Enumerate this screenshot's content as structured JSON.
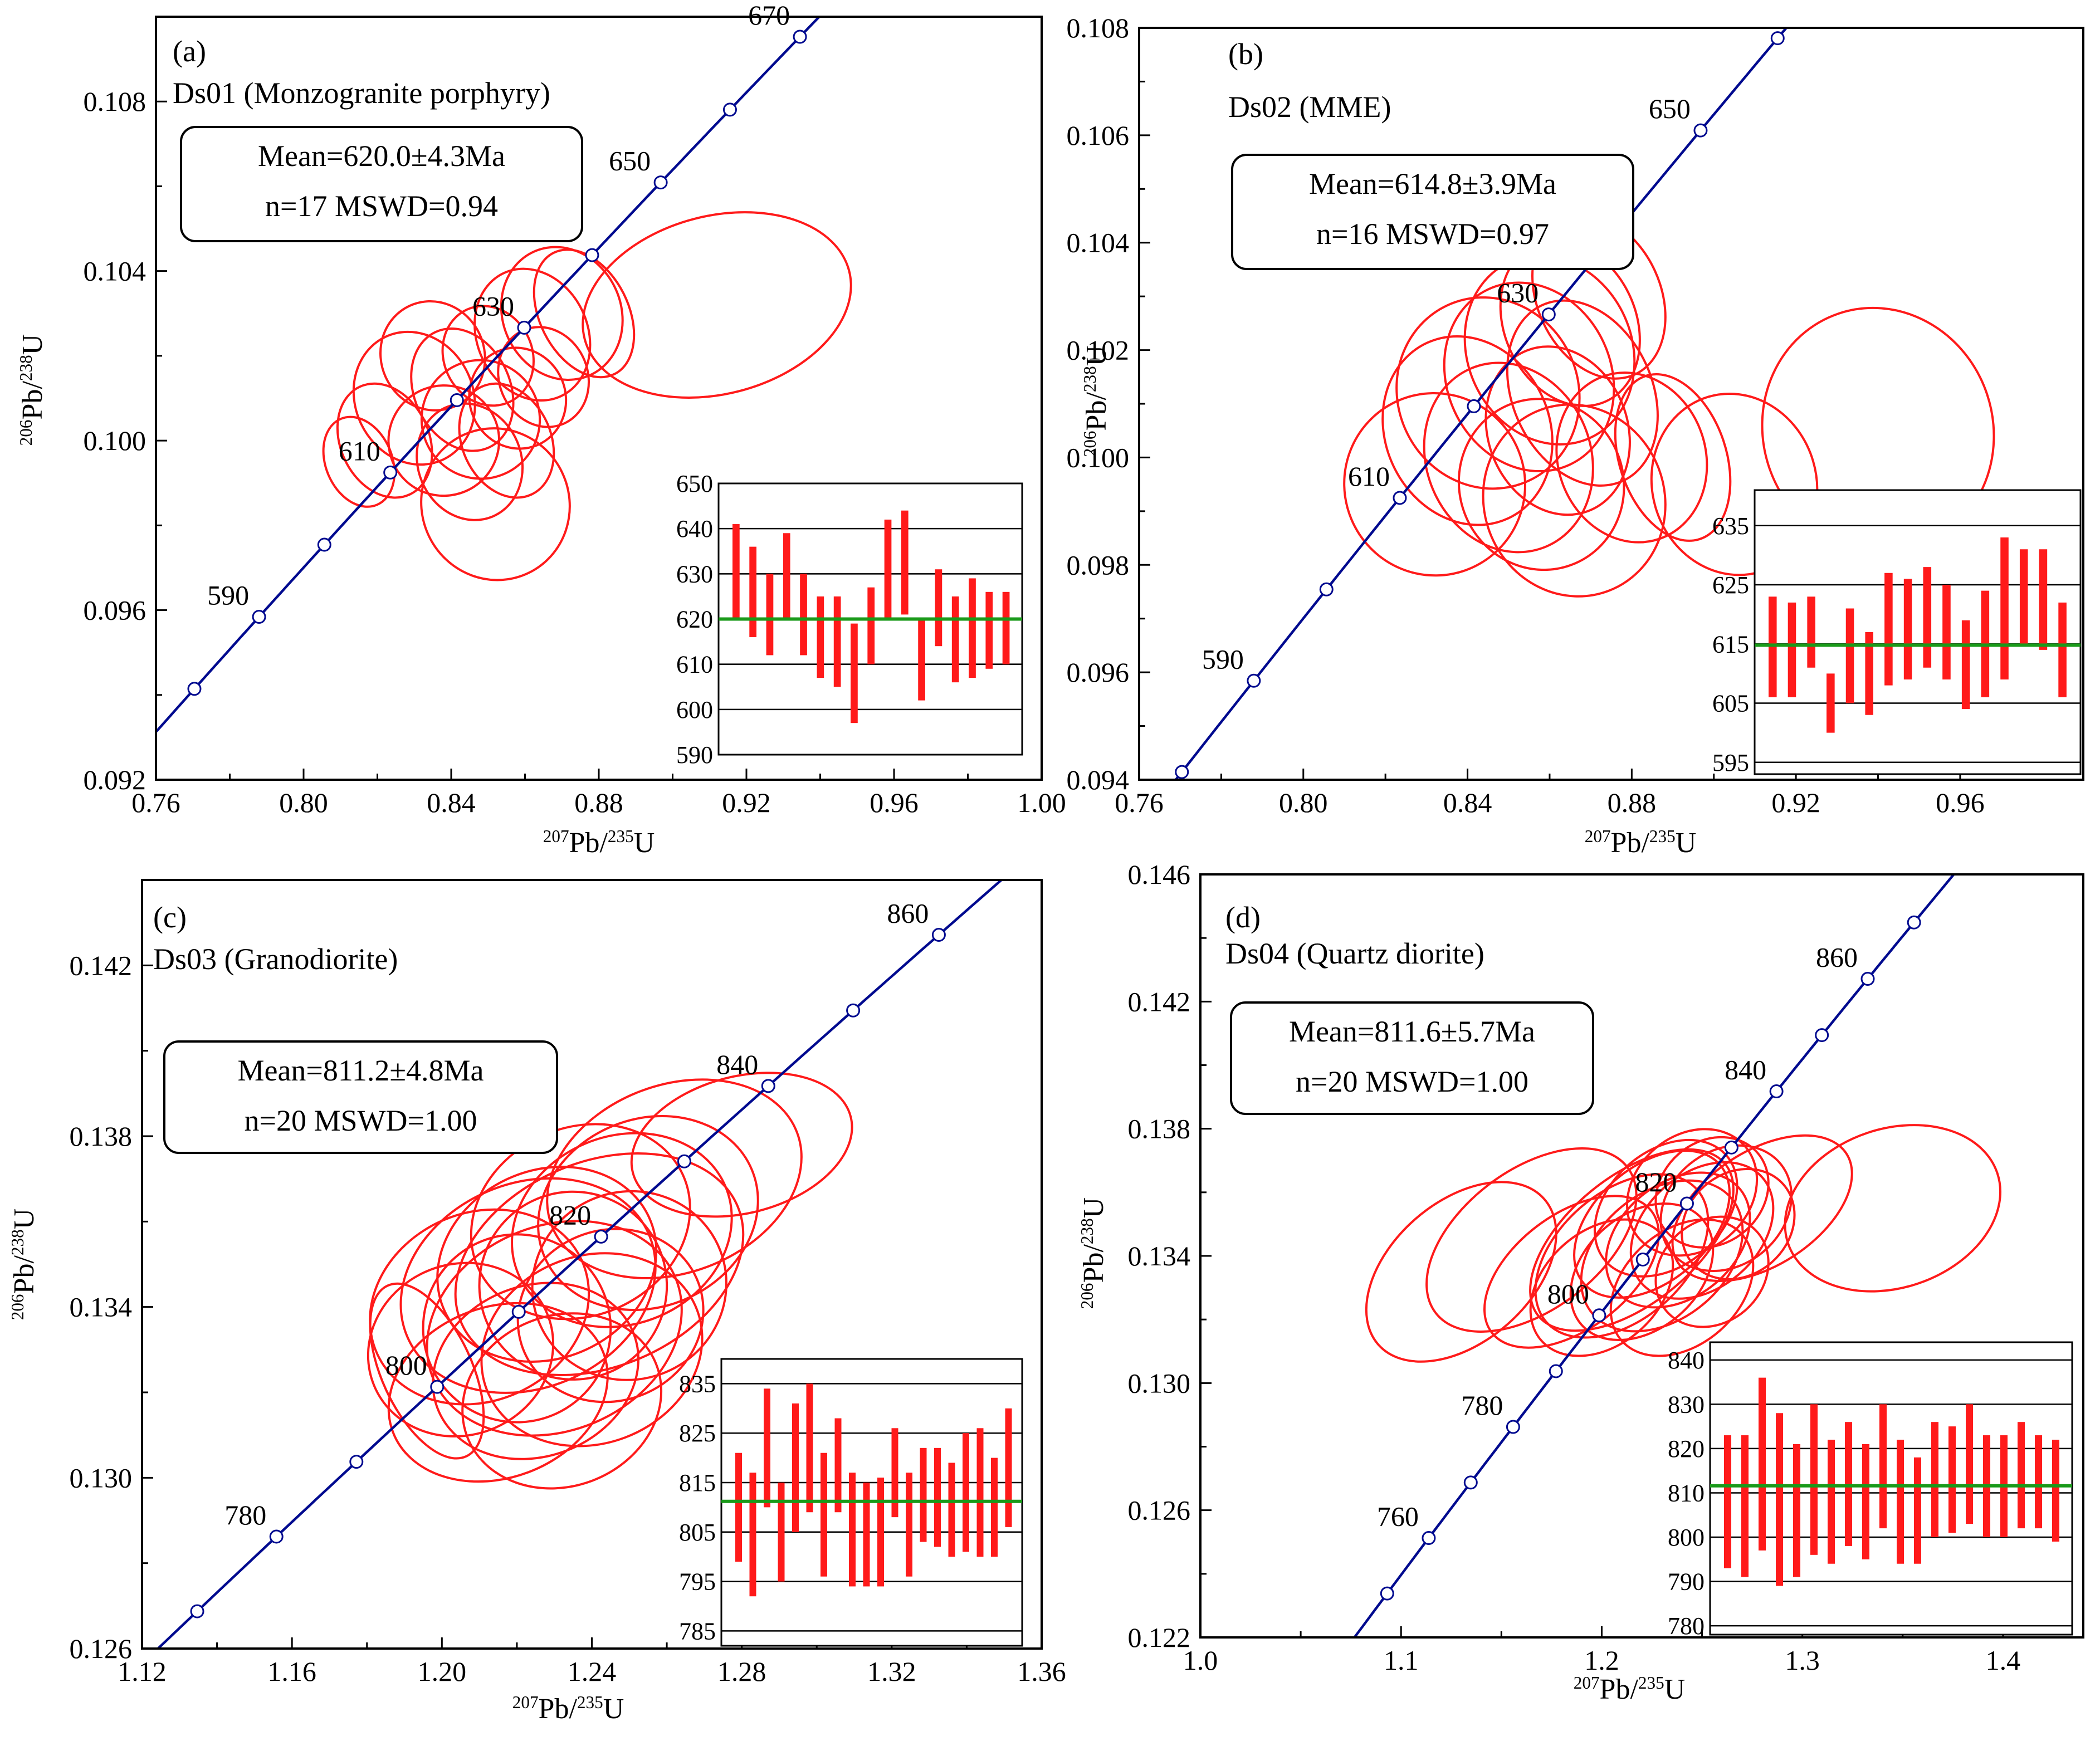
{
  "chart_data": [
    {
      "panel_label": "(a)",
      "sample_label": "Ds01 (Monzogranite porphyry)",
      "type": "concordia",
      "xlabel": "207Pb/235U",
      "ylabel": "206Pb/238U",
      "xlim": [
        0.76,
        1.0
      ],
      "ylim": [
        0.092,
        0.11
      ],
      "x_ticks": [
        0.76,
        0.8,
        0.84,
        0.88,
        0.92,
        0.96,
        1.0
      ],
      "x_tick_labels": [
        "0.76",
        "0.80",
        "0.84",
        "0.88",
        "0.92",
        "0.96",
        "1.00"
      ],
      "y_ticks": [
        0.092,
        0.096,
        0.1,
        0.104,
        0.108
      ],
      "y_tick_labels": [
        "0.092",
        "0.096",
        "0.100",
        "0.104",
        "0.108"
      ],
      "concordia_ages": [
        590,
        610,
        630,
        650,
        670
      ],
      "concordia_markers_step": 10,
      "concordia_range": [
        570,
        680
      ],
      "box": {
        "line1": "Mean=620.0±4.3Ma",
        "line2": "n=17   MSWD=0.94"
      },
      "ellipses": [
        {
          "x": 0.815,
          "y": 0.0995,
          "rx": 0.009,
          "ry": 0.0011,
          "r": -0.55
        },
        {
          "x": 0.822,
          "y": 0.1,
          "rx": 0.012,
          "ry": 0.0014,
          "r": -0.6
        },
        {
          "x": 0.83,
          "y": 0.101,
          "rx": 0.016,
          "ry": 0.0016,
          "r": -0.6
        },
        {
          "x": 0.835,
          "y": 0.102,
          "rx": 0.014,
          "ry": 0.0013,
          "r": -0.6
        },
        {
          "x": 0.838,
          "y": 0.1,
          "rx": 0.015,
          "ry": 0.0013,
          "r": -0.55
        },
        {
          "x": 0.843,
          "y": 0.1012,
          "rx": 0.013,
          "ry": 0.0015,
          "r": -0.6
        },
        {
          "x": 0.845,
          "y": 0.0995,
          "rx": 0.014,
          "ry": 0.0014,
          "r": -0.55
        },
        {
          "x": 0.848,
          "y": 0.1005,
          "rx": 0.016,
          "ry": 0.0014,
          "r": -0.6
        },
        {
          "x": 0.85,
          "y": 0.102,
          "rx": 0.012,
          "ry": 0.0012,
          "r": -0.6
        },
        {
          "x": 0.855,
          "y": 0.1,
          "rx": 0.012,
          "ry": 0.0014,
          "r": -0.6
        },
        {
          "x": 0.858,
          "y": 0.101,
          "rx": 0.013,
          "ry": 0.0012,
          "r": -0.55
        },
        {
          "x": 0.852,
          "y": 0.0985,
          "rx": 0.02,
          "ry": 0.0018,
          "r": -0.62
        },
        {
          "x": 0.862,
          "y": 0.1025,
          "rx": 0.015,
          "ry": 0.0016,
          "r": -0.6
        },
        {
          "x": 0.87,
          "y": 0.103,
          "rx": 0.016,
          "ry": 0.0016,
          "r": -0.6
        },
        {
          "x": 0.865,
          "y": 0.1015,
          "rx": 0.012,
          "ry": 0.0012,
          "r": -0.55
        },
        {
          "x": 0.876,
          "y": 0.103,
          "rx": 0.012,
          "ry": 0.0016,
          "r": -0.65
        },
        {
          "x": 0.912,
          "y": 0.1032,
          "rx": 0.037,
          "ry": 0.0021,
          "r": -0.35
        }
      ],
      "inset": {
        "ylim": [
          590,
          650
        ],
        "y_ticks": [
          590,
          600,
          610,
          620,
          630,
          640,
          650
        ],
        "y_tick_labels": [
          "590",
          "600",
          "610",
          "620",
          "630",
          "640",
          "650"
        ],
        "mean": 620.0,
        "bars": [
          [
            620,
            641
          ],
          [
            616,
            636
          ],
          [
            612,
            630
          ],
          [
            620,
            639
          ],
          [
            612,
            630
          ],
          [
            607,
            625
          ],
          [
            605,
            625
          ],
          [
            597,
            619
          ],
          [
            610,
            627
          ],
          [
            620,
            642
          ],
          [
            621,
            644
          ],
          [
            602,
            620
          ],
          [
            614,
            631
          ],
          [
            606,
            625
          ],
          [
            607,
            629
          ],
          [
            609,
            626
          ],
          [
            610,
            626
          ]
        ]
      }
    },
    {
      "panel_label": "(b)",
      "sample_label": "Ds02 (MME)",
      "type": "concordia",
      "xlabel": "207Pb/235U",
      "ylabel": "206Pb/238U",
      "xlim": [
        0.76,
        0.99
      ],
      "ylim": [
        0.094,
        0.108
      ],
      "x_ticks": [
        0.76,
        0.8,
        0.84,
        0.88,
        0.92,
        0.96
      ],
      "x_tick_labels": [
        "0.76",
        "0.80",
        "0.84",
        "0.88",
        "0.92",
        "0.96"
      ],
      "y_ticks": [
        0.094,
        0.096,
        0.098,
        0.1,
        0.102,
        0.104,
        0.106,
        0.108
      ],
      "y_tick_labels": [
        "0.094",
        "0.096",
        "0.098",
        "0.100",
        "0.102",
        "0.104",
        "0.106",
        "0.108"
      ],
      "concordia_ages": [
        590,
        610,
        630,
        650
      ],
      "concordia_markers_step": 10,
      "concordia_range": [
        575,
        670
      ],
      "box": {
        "line1": "Mean=614.8±3.9Ma",
        "line2": "n=16   MSWD=0.97"
      },
      "ellipses": [
        {
          "x": 0.832,
          "y": 0.0995,
          "rx": 0.022,
          "ry": 0.0017,
          "r": -0.55
        },
        {
          "x": 0.84,
          "y": 0.1005,
          "rx": 0.02,
          "ry": 0.0018,
          "r": -0.6
        },
        {
          "x": 0.845,
          "y": 0.1012,
          "rx": 0.022,
          "ry": 0.0018,
          "r": -0.6
        },
        {
          "x": 0.85,
          "y": 0.1,
          "rx": 0.02,
          "ry": 0.0018,
          "r": -0.55
        },
        {
          "x": 0.855,
          "y": 0.1015,
          "rx": 0.02,
          "ry": 0.0018,
          "r": -0.6
        },
        {
          "x": 0.858,
          "y": 0.0995,
          "rx": 0.02,
          "ry": 0.0016,
          "r": -0.5
        },
        {
          "x": 0.86,
          "y": 0.102,
          "rx": 0.02,
          "ry": 0.0018,
          "r": -0.6
        },
        {
          "x": 0.862,
          "y": 0.1005,
          "rx": 0.017,
          "ry": 0.0016,
          "r": -0.5
        },
        {
          "x": 0.865,
          "y": 0.1025,
          "rx": 0.016,
          "ry": 0.0016,
          "r": -0.6
        },
        {
          "x": 0.866,
          "y": 0.0992,
          "rx": 0.022,
          "ry": 0.0018,
          "r": -0.5
        },
        {
          "x": 0.868,
          "y": 0.1012,
          "rx": 0.017,
          "ry": 0.0018,
          "r": -0.6
        },
        {
          "x": 0.872,
          "y": 0.103,
          "rx": 0.015,
          "ry": 0.0016,
          "r": -0.6
        },
        {
          "x": 0.88,
          "y": 0.1,
          "rx": 0.018,
          "ry": 0.0016,
          "r": -0.45
        },
        {
          "x": 0.89,
          "y": 0.1,
          "rx": 0.013,
          "ry": 0.0016,
          "r": -0.45
        },
        {
          "x": 0.905,
          "y": 0.0995,
          "rx": 0.02,
          "ry": 0.0017,
          "r": -0.4
        },
        {
          "x": 0.94,
          "y": 0.1005,
          "rx": 0.028,
          "ry": 0.0023,
          "r": -0.45
        }
      ],
      "inset": {
        "ylim": [
          593,
          641
        ],
        "y_ticks": [
          595,
          605,
          615,
          625,
          635
        ],
        "y_tick_labels": [
          "595",
          "605",
          "615",
          "625",
          "635"
        ],
        "mean": 614.8,
        "bars": [
          [
            606,
            623
          ],
          [
            606,
            622
          ],
          [
            611,
            623
          ],
          [
            600,
            610
          ],
          [
            605,
            621
          ],
          [
            603,
            617
          ],
          [
            608,
            627
          ],
          [
            609,
            626
          ],
          [
            611,
            628
          ],
          [
            609,
            625
          ],
          [
            604,
            619
          ],
          [
            606,
            624
          ],
          [
            609,
            633
          ],
          [
            615,
            631
          ],
          [
            614,
            631
          ],
          [
            606,
            622
          ]
        ]
      }
    },
    {
      "panel_label": "(c)",
      "sample_label": "Ds03 (Granodiorite)",
      "type": "concordia",
      "xlabel": "207Pb/235U",
      "ylabel": "206Pb/238U",
      "xlim": [
        1.12,
        1.36
      ],
      "ylim": [
        0.126,
        0.144
      ],
      "x_ticks": [
        1.12,
        1.16,
        1.2,
        1.24,
        1.28,
        1.32,
        1.36
      ],
      "x_tick_labels": [
        "1.12",
        "1.16",
        "1.20",
        "1.24",
        "1.28",
        "1.32",
        "1.36"
      ],
      "y_ticks": [
        0.126,
        0.13,
        0.134,
        0.138,
        0.142
      ],
      "y_tick_labels": [
        "0.126",
        "0.130",
        "0.134",
        "0.138",
        "0.142"
      ],
      "concordia_ages": [
        780,
        800,
        820,
        840,
        860
      ],
      "concordia_markers_step": 10,
      "concordia_range": [
        755,
        880
      ],
      "box": {
        "line1": "Mean=811.2±4.8Ma",
        "line2": "n=20   MSWD=1.00"
      },
      "ellipses": [
        {
          "x": 1.196,
          "y": 0.1325,
          "rx": 0.012,
          "ry": 0.0022,
          "r": -0.6
        },
        {
          "x": 1.205,
          "y": 0.133,
          "rx": 0.025,
          "ry": 0.002,
          "r": -0.55
        },
        {
          "x": 1.21,
          "y": 0.134,
          "rx": 0.03,
          "ry": 0.0022,
          "r": -0.6
        },
        {
          "x": 1.215,
          "y": 0.132,
          "rx": 0.03,
          "ry": 0.002,
          "r": -0.5
        },
        {
          "x": 1.22,
          "y": 0.1335,
          "rx": 0.025,
          "ry": 0.0022,
          "r": -0.6
        },
        {
          "x": 1.223,
          "y": 0.1345,
          "rx": 0.035,
          "ry": 0.0024,
          "r": -0.55
        },
        {
          "x": 1.225,
          "y": 0.1325,
          "rx": 0.028,
          "ry": 0.002,
          "r": -0.5
        },
        {
          "x": 1.228,
          "y": 0.135,
          "rx": 0.03,
          "ry": 0.0022,
          "r": -0.6
        },
        {
          "x": 1.23,
          "y": 0.1335,
          "rx": 0.035,
          "ry": 0.0024,
          "r": -0.55
        },
        {
          "x": 1.232,
          "y": 0.1318,
          "rx": 0.027,
          "ry": 0.002,
          "r": -0.5
        },
        {
          "x": 1.235,
          "y": 0.1345,
          "rx": 0.025,
          "ry": 0.0022,
          "r": -0.55
        },
        {
          "x": 1.237,
          "y": 0.136,
          "rx": 0.03,
          "ry": 0.0022,
          "r": -0.6
        },
        {
          "x": 1.24,
          "y": 0.133,
          "rx": 0.03,
          "ry": 0.0022,
          "r": -0.5
        },
        {
          "x": 1.242,
          "y": 0.135,
          "rx": 0.04,
          "ry": 0.0024,
          "r": -0.55
        },
        {
          "x": 1.245,
          "y": 0.1338,
          "rx": 0.025,
          "ry": 0.002,
          "r": -0.5
        },
        {
          "x": 1.248,
          "y": 0.1358,
          "rx": 0.03,
          "ry": 0.0022,
          "r": -0.55
        },
        {
          "x": 1.25,
          "y": 0.1345,
          "rx": 0.026,
          "ry": 0.0022,
          "r": -0.5
        },
        {
          "x": 1.255,
          "y": 0.1362,
          "rx": 0.03,
          "ry": 0.0022,
          "r": -0.55
        },
        {
          "x": 1.262,
          "y": 0.137,
          "rx": 0.035,
          "ry": 0.0022,
          "r": -0.5
        },
        {
          "x": 1.28,
          "y": 0.1378,
          "rx": 0.03,
          "ry": 0.0016,
          "r": -0.35
        }
      ],
      "inset": {
        "ylim": [
          782,
          840
        ],
        "y_ticks": [
          785,
          795,
          805,
          815,
          825,
          835
        ],
        "y_tick_labels": [
          "785",
          "795",
          "805",
          "815",
          "825",
          "835"
        ],
        "mean": 811.2,
        "bars": [
          [
            799,
            821
          ],
          [
            792,
            817
          ],
          [
            810,
            834
          ],
          [
            795,
            815
          ],
          [
            805,
            831
          ],
          [
            809,
            835
          ],
          [
            796,
            821
          ],
          [
            809,
            828
          ],
          [
            794,
            817
          ],
          [
            794,
            815
          ],
          [
            794,
            816
          ],
          [
            808,
            826
          ],
          [
            796,
            817
          ],
          [
            803,
            822
          ],
          [
            802,
            822
          ],
          [
            800,
            819
          ],
          [
            801,
            825
          ],
          [
            800,
            826
          ],
          [
            800,
            820
          ],
          [
            806,
            830
          ]
        ]
      }
    },
    {
      "panel_label": "(d)",
      "sample_label": "Ds04 (Quartz diorite)",
      "type": "concordia",
      "xlabel": "207Pb/235U",
      "ylabel": "206Pb/238U",
      "xlim": [
        1.0,
        1.44
      ],
      "ylim": [
        0.122,
        0.146
      ],
      "x_ticks": [
        1.0,
        1.1,
        1.2,
        1.3,
        1.4
      ],
      "x_tick_labels": [
        "1.0",
        "1.1",
        "1.2",
        "1.3",
        "1.4"
      ],
      "y_ticks": [
        0.122,
        0.126,
        0.13,
        0.134,
        0.138,
        0.142,
        0.146
      ],
      "y_tick_labels": [
        "0.122",
        "0.126",
        "0.130",
        "0.134",
        "0.138",
        "0.142",
        "0.146"
      ],
      "concordia_ages": [
        760,
        780,
        800,
        820,
        840,
        860
      ],
      "concordia_markers_step": 10,
      "concordia_range": [
        740,
        885
      ],
      "box": {
        "line1": "Mean=811.6±5.7Ma",
        "line2": "n=20   MSWD=1.00"
      },
      "ellipses": [
        {
          "x": 1.13,
          "y": 0.1335,
          "rx": 0.055,
          "ry": 0.0022,
          "r": -1.0
        },
        {
          "x": 1.165,
          "y": 0.1345,
          "rx": 0.06,
          "ry": 0.0022,
          "r": -0.9
        },
        {
          "x": 1.185,
          "y": 0.1335,
          "rx": 0.05,
          "ry": 0.0018,
          "r": -0.9
        },
        {
          "x": 1.2,
          "y": 0.133,
          "rx": 0.04,
          "ry": 0.0018,
          "r": -1.0
        },
        {
          "x": 1.21,
          "y": 0.134,
          "rx": 0.05,
          "ry": 0.002,
          "r": -1.0
        },
        {
          "x": 1.215,
          "y": 0.1345,
          "rx": 0.06,
          "ry": 0.002,
          "r": -0.95
        },
        {
          "x": 1.22,
          "y": 0.1335,
          "rx": 0.04,
          "ry": 0.0018,
          "r": -1.0
        },
        {
          "x": 1.225,
          "y": 0.135,
          "rx": 0.045,
          "ry": 0.0018,
          "r": -1.0
        },
        {
          "x": 1.23,
          "y": 0.134,
          "rx": 0.045,
          "ry": 0.002,
          "r": -0.95
        },
        {
          "x": 1.232,
          "y": 0.1355,
          "rx": 0.04,
          "ry": 0.0018,
          "r": -1.0
        },
        {
          "x": 1.238,
          "y": 0.1345,
          "rx": 0.04,
          "ry": 0.0018,
          "r": -0.95
        },
        {
          "x": 1.24,
          "y": 0.133,
          "rx": 0.04,
          "ry": 0.0018,
          "r": -1.0
        },
        {
          "x": 1.245,
          "y": 0.136,
          "rx": 0.035,
          "ry": 0.0018,
          "r": -1.0
        },
        {
          "x": 1.25,
          "y": 0.1348,
          "rx": 0.04,
          "ry": 0.0018,
          "r": -1.0
        },
        {
          "x": 1.255,
          "y": 0.136,
          "rx": 0.03,
          "ry": 0.0016,
          "r": -1.0
        },
        {
          "x": 1.262,
          "y": 0.1355,
          "rx": 0.035,
          "ry": 0.0018,
          "r": -0.95
        },
        {
          "x": 1.268,
          "y": 0.135,
          "rx": 0.03,
          "ry": 0.0016,
          "r": -1.0
        },
        {
          "x": 1.28,
          "y": 0.1355,
          "rx": 0.05,
          "ry": 0.0018,
          "r": -0.8
        },
        {
          "x": 1.255,
          "y": 0.1335,
          "rx": 0.03,
          "ry": 0.0016,
          "r": -1.0
        },
        {
          "x": 1.345,
          "y": 0.1355,
          "rx": 0.055,
          "ry": 0.0025,
          "r": -0.45
        }
      ],
      "inset": {
        "ylim": [
          778,
          844
        ],
        "y_ticks": [
          780,
          790,
          800,
          810,
          820,
          830,
          840
        ],
        "y_tick_labels": [
          "780",
          "790",
          "800",
          "810",
          "820",
          "830",
          "840"
        ],
        "mean": 811.6,
        "bars": [
          [
            793,
            823
          ],
          [
            791,
            823
          ],
          [
            797,
            836
          ],
          [
            789,
            828
          ],
          [
            791,
            821
          ],
          [
            796,
            830
          ],
          [
            794,
            822
          ],
          [
            798,
            826
          ],
          [
            795,
            821
          ],
          [
            802,
            830
          ],
          [
            794,
            822
          ],
          [
            794,
            818
          ],
          [
            800,
            826
          ],
          [
            801,
            825
          ],
          [
            803,
            830
          ],
          [
            800,
            823
          ],
          [
            800,
            823
          ],
          [
            802,
            826
          ],
          [
            802,
            823
          ],
          [
            799,
            822
          ]
        ]
      }
    }
  ]
}
